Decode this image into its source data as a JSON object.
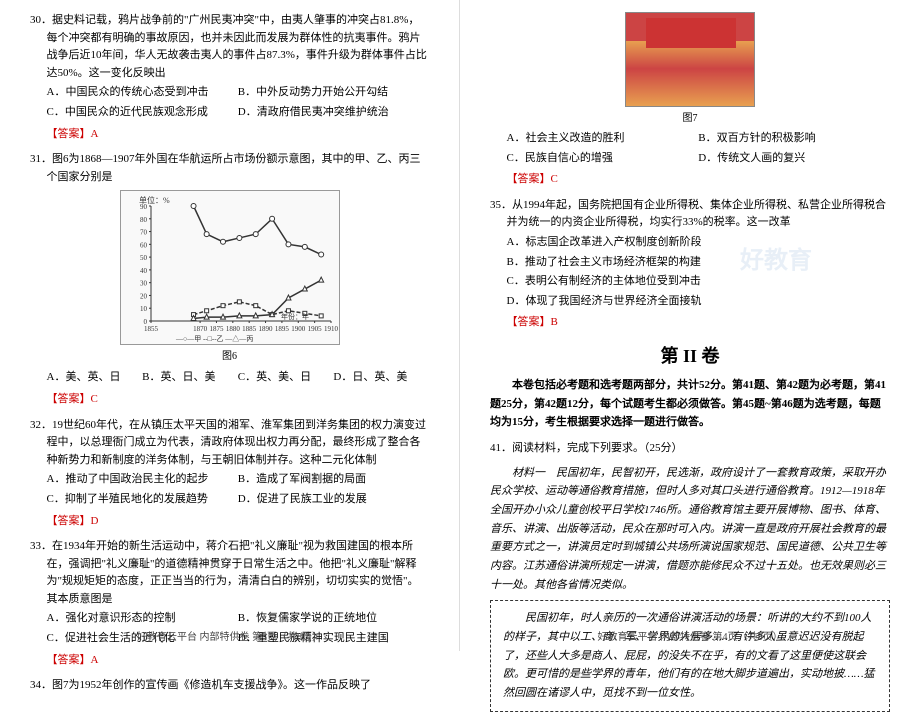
{
  "q30": {
    "num": "30．",
    "text": "据史料记载，鸦片战争前的\"广州民夷冲突\"中，由夷人肇事的冲突占81.8%，每个冲突都有明确的事故原因，也并未因此而发展为群体性的抗夷事件。鸦片战争后近10年间，华人无故袭击夷人的事件占87.3%，事件升级为群体事件占比达50%。这一变化反映出",
    "optA": "A．中国民众的传统心态受到冲击",
    "optB": "B．中外反动势力开始公开勾结",
    "optC": "C．中国民众的近代民族观念形成",
    "optD": "D．清政府借民夷冲突维护统治",
    "answer": "【答案】A"
  },
  "q31": {
    "num": "31．",
    "text": "图6为1868—1907年外国在华航运所占市场份额示意图，其中的甲、乙、丙三个国家分别是",
    "caption": "图6",
    "optA": "A．美、英、日",
    "optB": "B．英、日、美",
    "optC": "C．英、美、日",
    "optD": "D．日、英、美",
    "answer": "【答案】C"
  },
  "chart": {
    "unit": "单位：%",
    "xlabel": "年份：年",
    "xticks": [
      "1855",
      "1870",
      "1875",
      "1880",
      "1885",
      "1890",
      "1895",
      "1900",
      "1905",
      "1910"
    ],
    "yticks": [
      0,
      10,
      20,
      30,
      40,
      50,
      60,
      70,
      80,
      90
    ],
    "series": {
      "jia": {
        "label": "甲",
        "color": "#333",
        "years": [
          1868,
          1872,
          1877,
          1882,
          1887,
          1892,
          1897,
          1902,
          1907
        ],
        "values": [
          90,
          68,
          62,
          65,
          68,
          80,
          60,
          58,
          52
        ]
      },
      "yi": {
        "label": "乙",
        "color": "#333",
        "dash": "4,2",
        "years": [
          1868,
          1872,
          1877,
          1882,
          1887,
          1892,
          1897,
          1902,
          1907
        ],
        "values": [
          5,
          8,
          12,
          15,
          12,
          5,
          8,
          6,
          4
        ]
      },
      "bing": {
        "label": "丙",
        "color": "#333",
        "marker": "triangle",
        "years": [
          1868,
          1872,
          1877,
          1882,
          1887,
          1892,
          1897,
          1902,
          1907
        ],
        "values": [
          2,
          3,
          3,
          4,
          4,
          5,
          18,
          25,
          32
        ]
      }
    },
    "legend": "—○—甲 --□--乙 —△—丙"
  },
  "q32": {
    "num": "32．",
    "text": "19世纪60年代，在从镇压太平天国的湘军、淮军集团到洋务集团的权力演变过程中，以总理衙门成立为代表，清政府体现出权力再分配，最终形成了整合各种新势力和新制度的洋务体制，与王朝旧体制并存。这种二元化体制",
    "optA": "A．推动了中国政治民主化的起步",
    "optB": "B．造成了军阀割据的局面",
    "optC": "C．抑制了半殖民地化的发展趋势",
    "optD": "D．促进了民族工业的发展",
    "answer": "【答案】D"
  },
  "q33": {
    "num": "33．",
    "text": "在1934年开始的新生活运动中，蒋介石把\"礼义廉耻\"视为救国建国的根本所在，强调把\"礼义廉耻\"的道德精神贯穿于日常生活之中。他把\"礼义廉耻\"解释为\"规规矩矩的态度，正正当当的行为，清清白白的辨别，切切实实的觉悟\"。其本质意图是",
    "optA": "A．强化对意识形态的控制",
    "optB": "B．恢复儒家学说的正统地位",
    "optC": "C．促进社会生活的近代化",
    "optD": "D．重塑民族精神实现民主建国",
    "answer": "【答案】A"
  },
  "q34": {
    "num": "34．",
    "text": "图7为1952年创作的宣传画《修造机车支援战争》。这一作品反映了",
    "caption": "图7",
    "optA": "A．社会主义改造的胜利",
    "optB": "B．双百方针的积极影响",
    "optC": "C．民族自信心的增强",
    "optD": "D．传统文人画的复兴",
    "answer": "【答案】C"
  },
  "q35": {
    "num": "35．",
    "text": "从1994年起，国务院把国有企业所得税、集体企业所得税、私营企业所得税合并为统一的内资企业所得税，均实行33%的税率。这一改革",
    "optA": "A．标志国企改革进入产权制度创新阶段",
    "optB": "B．推动了社会主义市场经济框架的构建",
    "optC": "C．表明公有制经济的主体地位受到冲击",
    "optD": "D．体现了我国经济与世界经济全面接轨",
    "answer": "【答案】B"
  },
  "section2": {
    "title": "第 II 卷",
    "desc": "本卷包括必考题和选考题两部分，共计52分。第41题、第42题为必考题，第41题25分，第42题12分，每个试题考生都必须做答。第45题~第46题为选考题，每题均为15分，考生根据要求选择一题进行做答。"
  },
  "q41": {
    "num": "41．",
    "text": "阅读材料，完成下列要求。（25分）",
    "mat1_label": "材料一",
    "mat1_text": "民国初年，民智初开，民选渐，政府设计了一套教育政策，采取开办民众学校、运动等通俗教育措施，但时人多对其口头进行通俗教育。1912—1918年全国开办小众儿童创校平日学校1746所。通俗教育馆主要开展博物、图书、体育、音乐、讲演、出版等活动，民众在那时可入内。讲演一直是政府开展社会教育的最重要方式之一，讲演员定时到城镇公共场所演说国家规范、国民道德、公共卫生等内容。江苏通俗讲演所规定一讲演，借题亦能修民众不过十五处。也无效果则必三十一处。其他各省情况类似。",
    "quote": "民国初年，时人亲历的一次通俗讲演活动的场景：听讲的大约不到100人的样子，其中以工、商、军、学界的人居多……有许多人虽意迟迟没有脱起了，还些人大多是商人、屁屁，的没失不在乎，有的文看了这里便使这联会欧。更可惜的是些学界的青年，他们有的在地大脚步道遍出，实动地披……猛然回圆在诸谬人中，觅找不到一位女性。"
  },
  "footer_left": "好教育云平台 内部特供卷 第3页（共8页）",
  "footer_right": "好教育云平台 内部特供卷 第4页（共8页）",
  "watermark": "好教育"
}
